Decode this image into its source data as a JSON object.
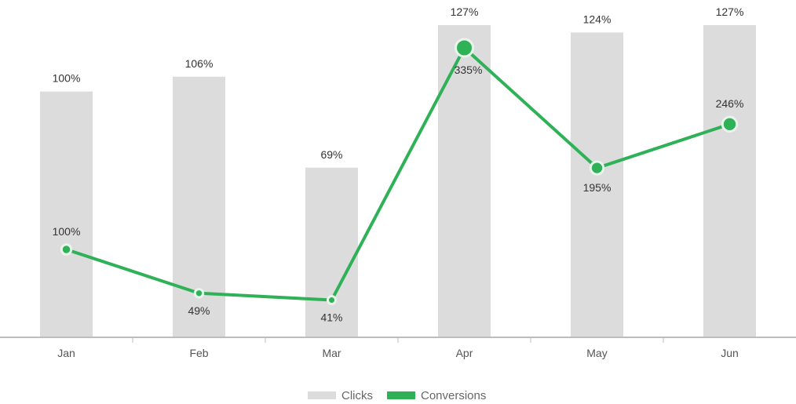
{
  "chart_data": {
    "type": "bar",
    "categories": [
      "Jan",
      "Feb",
      "Mar",
      "Apr",
      "May",
      "Jun"
    ],
    "series": [
      {
        "name": "Clicks",
        "type": "bar",
        "values": [
          100,
          106,
          69,
          127,
          124,
          127
        ],
        "labels": [
          "100%",
          "106%",
          "69%",
          "127%",
          "124%",
          "127%"
        ],
        "color": "#dcdcdc"
      },
      {
        "name": "Conversions",
        "type": "line",
        "values": [
          100,
          49,
          41,
          335,
          195,
          246
        ],
        "labels": [
          "100%",
          "49%",
          "41%",
          "335%",
          "195%",
          "246%"
        ],
        "color": "#2eb157"
      }
    ],
    "title": "",
    "xlabel": "",
    "ylabel": "",
    "bar_ylim": [
      0,
      138
    ],
    "line_ylim": [
      -70,
      360
    ],
    "grid": false,
    "legend_position": "bottom-center"
  }
}
